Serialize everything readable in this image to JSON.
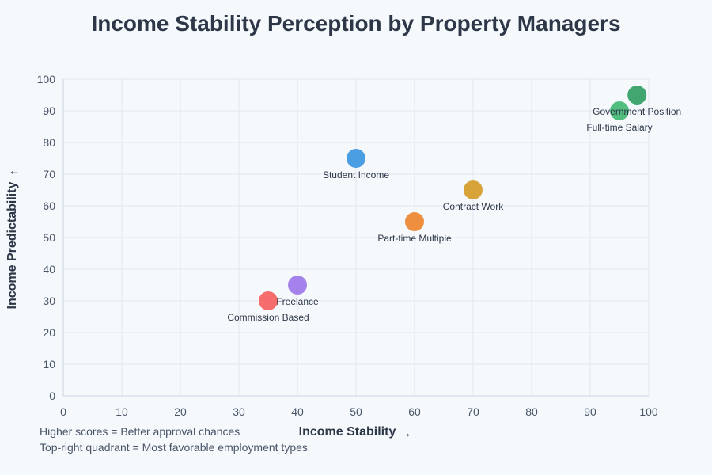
{
  "chart_data": {
    "type": "scatter",
    "title": "Income Stability Perception by Property Managers",
    "xlabel": "Income Stability",
    "ylabel": "Income Predictability",
    "xlabel_arrow": "→",
    "ylabel_arrow": "↑",
    "xlim": [
      0,
      100
    ],
    "ylim": [
      0,
      100
    ],
    "xticks": [
      0,
      10,
      20,
      30,
      40,
      50,
      60,
      70,
      80,
      90,
      100
    ],
    "yticks": [
      0,
      10,
      20,
      30,
      40,
      50,
      60,
      70,
      80,
      90,
      100
    ],
    "grid": true,
    "points": [
      {
        "label": "Government Position",
        "x": 98,
        "y": 95,
        "color": "#38a169"
      },
      {
        "label": "Full-time Salary",
        "x": 95,
        "y": 90,
        "color": "#48bb78"
      },
      {
        "label": "Student Income",
        "x": 50,
        "y": 75,
        "color": "#4299e1"
      },
      {
        "label": "Contract Work",
        "x": 70,
        "y": 65,
        "color": "#d69e2e"
      },
      {
        "label": "Part-time Multiple",
        "x": 60,
        "y": 55,
        "color": "#ed8936"
      },
      {
        "label": "Freelance",
        "x": 40,
        "y": 35,
        "color": "#9f7aea"
      },
      {
        "label": "Commission Based",
        "x": 35,
        "y": 30,
        "color": "#f56565"
      }
    ],
    "annotations": [
      "Higher scores = Better approval chances",
      "Top-right quadrant = Most favorable employment types"
    ]
  }
}
